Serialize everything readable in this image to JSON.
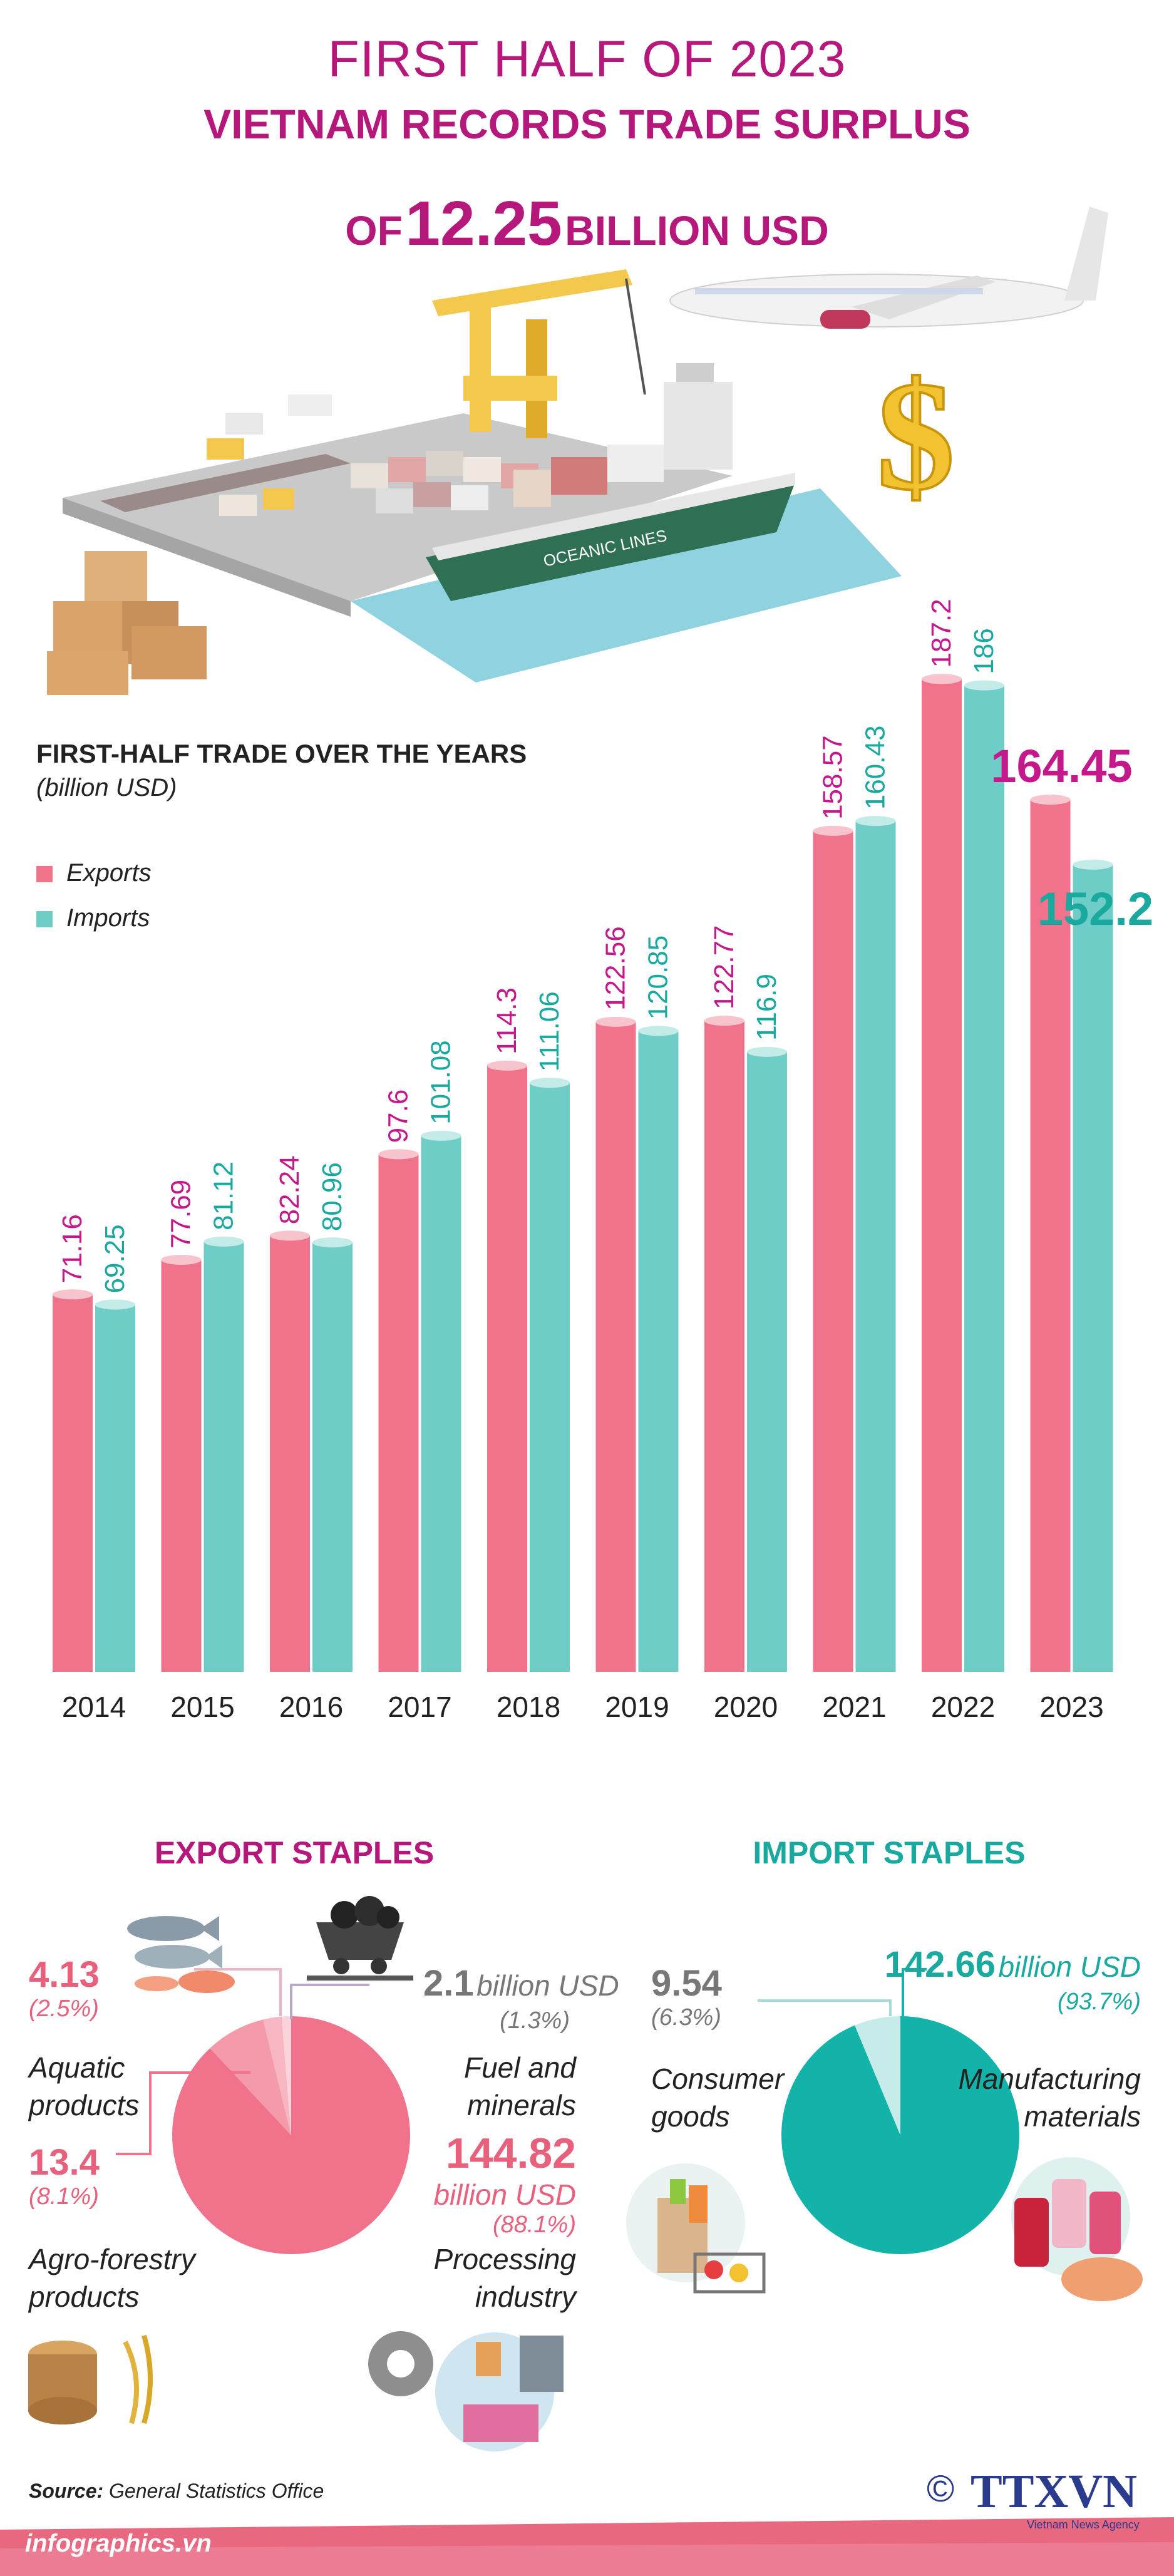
{
  "header": {
    "line1": "FIRST HALF OF 2023",
    "line2": "VIETNAM RECORDS TRADE SURPLUS",
    "line3_prefix": "OF",
    "line3_value": "12.25",
    "line3_suffix": "BILLION USD",
    "ship_text": "OCEANIC LINES"
  },
  "colors": {
    "brand": "#b5177a",
    "exports": "#f0738b",
    "imports": "#6fcdc8",
    "import_pie": "#14b3a9"
  },
  "chart_data": {
    "type": "bar",
    "title": "FIRST-HALF TRADE OVER THE YEARS",
    "unit": "(billion USD)",
    "categories": [
      "2014",
      "2015",
      "2016",
      "2017",
      "2018",
      "2019",
      "2020",
      "2021",
      "2022",
      "2023"
    ],
    "series": [
      {
        "name": "Exports",
        "values": [
          71.16,
          77.69,
          82.24,
          97.6,
          114.3,
          122.56,
          122.77,
          158.57,
          187.2,
          164.45
        ]
      },
      {
        "name": "Imports",
        "values": [
          69.25,
          81.12,
          80.96,
          101.08,
          111.06,
          120.85,
          116.9,
          160.43,
          186,
          152.2
        ]
      }
    ],
    "value_labels": {
      "Exports": [
        "71.16",
        "77.69",
        "82.24",
        "97.6",
        "114.3",
        "122.56",
        "122.77",
        "158.57",
        "187.2",
        "164.45"
      ],
      "Imports": [
        "69.25",
        "81.12",
        "80.96",
        "101.08",
        "111.06",
        "120.85",
        "116.9",
        "160.43",
        "186",
        "152.2"
      ]
    },
    "legend_position": "top-left",
    "grid": false
  },
  "export_staples": {
    "title": "EXPORT STAPLES",
    "chart_data": {
      "type": "pie",
      "categories": [
        "Processing industry",
        "Agro-forestry products",
        "Aquatic products",
        "Fuel and minerals"
      ],
      "values": [
        144.82,
        13.4,
        4.13,
        2.1
      ],
      "percents": [
        88.1,
        8.1,
        2.5,
        1.3
      ]
    },
    "aquatic": {
      "value": "4.13",
      "pct": "(2.5%)",
      "label1": "Aquatic",
      "label2": "products"
    },
    "agro": {
      "value": "13.4",
      "pct": "(8.1%)",
      "label1": "Agro-forestry",
      "label2": "products"
    },
    "fuel": {
      "value": "2.1",
      "unit": "billion USD",
      "pct": "(1.3%)",
      "label1": "Fuel and",
      "label2": "minerals"
    },
    "processing": {
      "value": "144.82",
      "unit": "billion USD",
      "pct": "(88.1%)",
      "label1": "Processing",
      "label2": "industry"
    }
  },
  "import_staples": {
    "title": "IMPORT STAPLES",
    "chart_data": {
      "type": "pie",
      "categories": [
        "Manufacturing materials",
        "Consumer goods"
      ],
      "values": [
        142.66,
        9.54
      ],
      "percents": [
        93.7,
        6.3
      ]
    },
    "consumer": {
      "value": "9.54",
      "pct": "(6.3%)",
      "label1": "Consumer",
      "label2": "goods"
    },
    "manufacturing": {
      "value": "142.66",
      "unit": "billion USD",
      "pct": "(93.7%)",
      "label1": "Manufacturing",
      "label2": "materials"
    }
  },
  "footer": {
    "source_label": "Source:",
    "source_value": "General Statistics Office",
    "site": "infographics.vn",
    "copyright": "©",
    "logo_text": "TTXVN",
    "agency": "Vietnam News Agency"
  }
}
